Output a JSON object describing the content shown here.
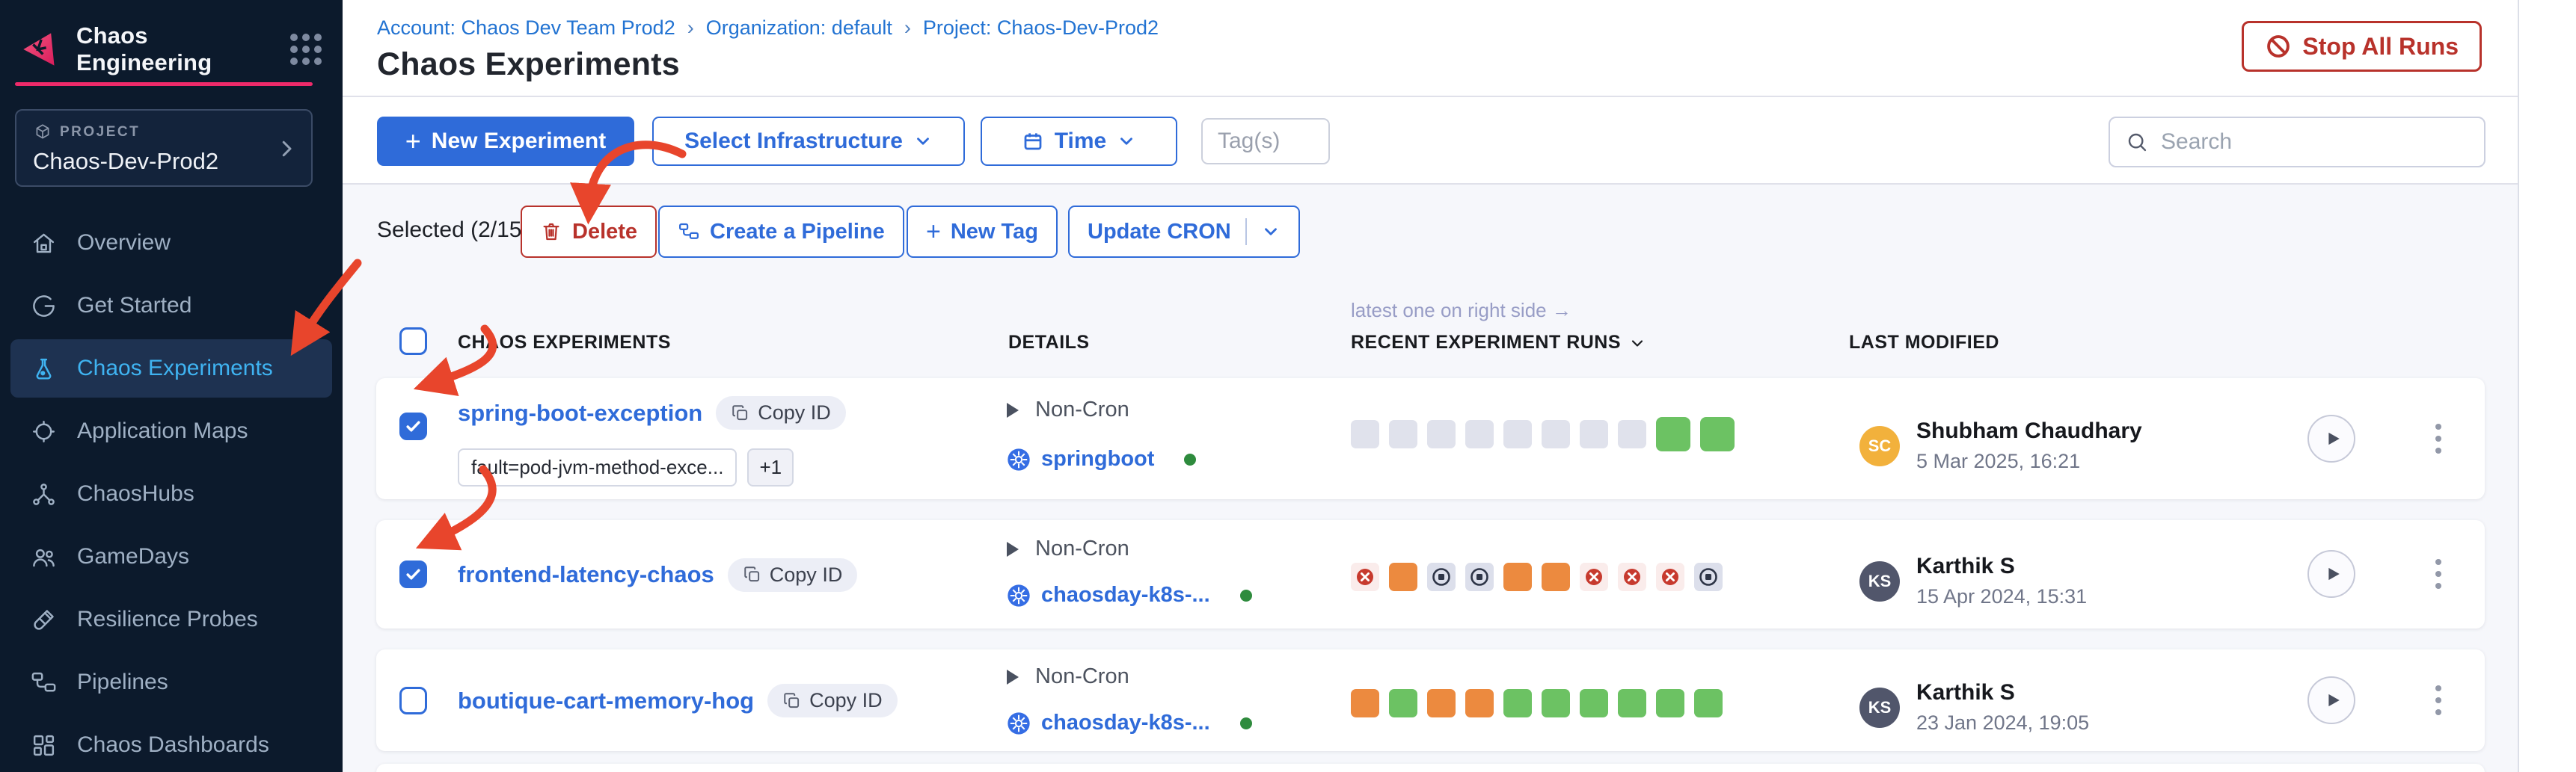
{
  "sidebar": {
    "brand": "Chaos Engineering",
    "project_label": "PROJECT",
    "project_name": "Chaos-Dev-Prod2",
    "items": [
      {
        "label": "Overview",
        "icon": "home",
        "active": false
      },
      {
        "label": "Get Started",
        "icon": "get-started",
        "active": false
      },
      {
        "label": "Chaos Experiments",
        "icon": "flask",
        "active": true
      },
      {
        "label": "Application Maps",
        "icon": "crosshair",
        "active": false
      },
      {
        "label": "ChaosHubs",
        "icon": "hub",
        "active": false
      },
      {
        "label": "GameDays",
        "icon": "users",
        "active": false
      },
      {
        "label": "Resilience Probes",
        "icon": "probe",
        "active": false
      },
      {
        "label": "Pipelines",
        "icon": "pipeline",
        "active": false
      },
      {
        "label": "Chaos Dashboards",
        "icon": "dashboard",
        "active": false
      }
    ]
  },
  "header": {
    "breadcrumbs": [
      "Account: Chaos Dev Team Prod2",
      "Organization: default",
      "Project: Chaos-Dev-Prod2"
    ],
    "title": "Chaos Experiments",
    "stop_all_runs": "Stop All Runs"
  },
  "toolbar": {
    "new_experiment": "New Experiment",
    "select_infrastructure": "Select Infrastructure",
    "time": "Time",
    "tags_placeholder": "Tag(s)",
    "search_placeholder": "Search"
  },
  "selection_bar": {
    "selected_label": "Selected (2/15)",
    "delete": "Delete",
    "create_pipeline": "Create a Pipeline",
    "new_tag": "New Tag",
    "update_cron": "Update CRON"
  },
  "table": {
    "note": "latest one on right side →",
    "headers": [
      "CHAOS EXPERIMENTS",
      "DETAILS",
      "RECENT EXPERIMENT RUNS",
      "LAST MODIFIED"
    ],
    "copy_id_label": "Copy ID",
    "rows": [
      {
        "name": "spring-boot-exception",
        "checked": true,
        "tags": [
          "fault=pod-jvm-method-exce..."
        ],
        "tags_more": "+1",
        "cron": "Non-Cron",
        "infra": "springboot",
        "runs": [
          "empty",
          "empty",
          "empty",
          "empty",
          "empty",
          "empty",
          "empty",
          "empty",
          "passed-lg",
          "passed-lg"
        ],
        "modified": {
          "initials": "SC",
          "name": "Shubham Chaudhary",
          "date": "5 Mar 2025, 16:21",
          "avatar_color": "#f2b13c"
        }
      },
      {
        "name": "frontend-latency-chaos",
        "checked": true,
        "tags": [],
        "tags_more": "",
        "cron": "Non-Cron",
        "infra": "chaosday-k8s-...",
        "runs": [
          "failed",
          "running",
          "stopped",
          "stopped",
          "running",
          "running",
          "failed",
          "failed",
          "failed",
          "stopped"
        ],
        "modified": {
          "initials": "KS",
          "name": "Karthik S",
          "date": "15 Apr 2024, 15:31",
          "avatar_color": "#51566b"
        }
      },
      {
        "name": "boutique-cart-memory-hog",
        "checked": false,
        "tags": [],
        "tags_more": "",
        "cron": "Non-Cron",
        "infra": "chaosday-k8s-...",
        "runs": [
          "running",
          "passed",
          "running",
          "running",
          "passed",
          "passed",
          "passed",
          "passed",
          "passed",
          "passed"
        ],
        "modified": {
          "initials": "KS",
          "name": "Karthik S",
          "date": "23 Jan 2024, 19:05",
          "avatar_color": "#51566b"
        }
      }
    ]
  },
  "colors": {
    "primary_blue": "#2f6bd9",
    "active_nav": "#3fb3f1",
    "brand_pink": "#ee2a6a",
    "danger_red": "#b8322b",
    "annotation_red": "#e8452c",
    "run_empty": "#e0e2ec",
    "run_passed": "#6cc263",
    "run_running": "#ec8a3f",
    "run_failed_bg": "#faeceb",
    "run_failed_fg": "#c73a2e",
    "run_stopped_bg": "#dcdfeb",
    "run_stopped_fg": "#2e3547",
    "status_dot_green": "#2e8b3d"
  }
}
